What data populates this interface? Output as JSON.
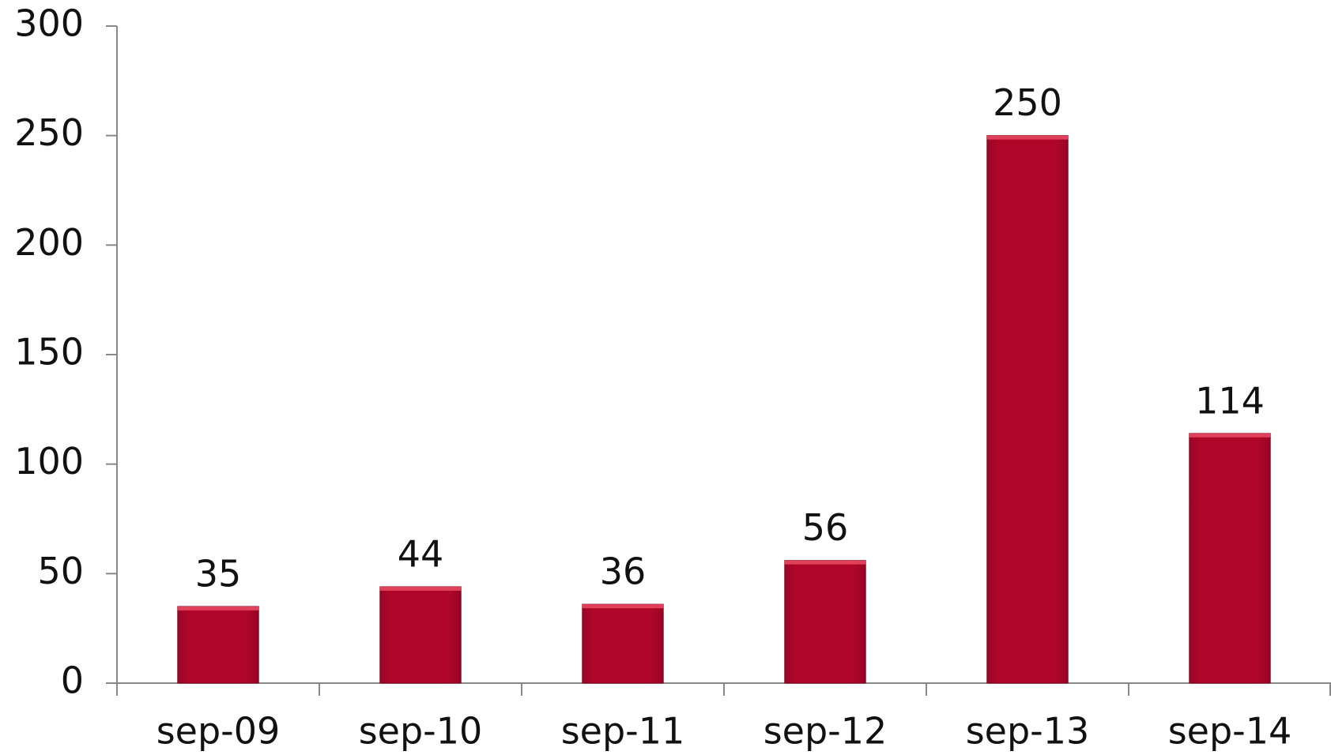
{
  "chart_data": {
    "type": "bar",
    "categories": [
      "sep-09",
      "sep-10",
      "sep-11",
      "sep-12",
      "sep-13",
      "sep-14"
    ],
    "values": [
      35,
      44,
      36,
      56,
      250,
      114
    ],
    "color": "#b0062a",
    "ylim": [
      0,
      300
    ],
    "yticks": [
      0,
      50,
      100,
      150,
      200,
      250,
      300
    ],
    "grid": false
  }
}
